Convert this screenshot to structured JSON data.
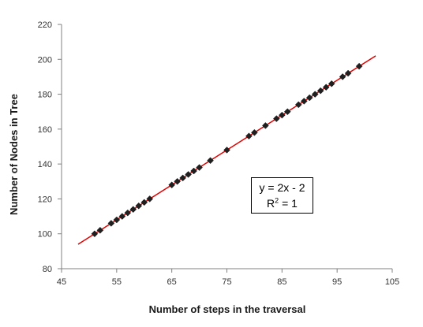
{
  "chart_data": {
    "type": "scatter",
    "xlabel": "Number of steps in the traversal",
    "ylabel": "Number of Nodes in Tree",
    "xlim": [
      45,
      105
    ],
    "ylim": [
      80,
      220
    ],
    "x_ticks": [
      "45",
      "55",
      "65",
      "75",
      "85",
      "95",
      "105"
    ],
    "y_ticks": [
      "80",
      "100",
      "120",
      "140",
      "160",
      "180",
      "200",
      "220"
    ],
    "grid": false,
    "series": [
      {
        "marker": "diamond",
        "color": "#1f1f1f",
        "points": [
          [
            51,
            100
          ],
          [
            52,
            102
          ],
          [
            54,
            106
          ],
          [
            55,
            108
          ],
          [
            56,
            110
          ],
          [
            57,
            112
          ],
          [
            58,
            114
          ],
          [
            59,
            116
          ],
          [
            60,
            118
          ],
          [
            61,
            120
          ],
          [
            65,
            128
          ],
          [
            66,
            130
          ],
          [
            67,
            132
          ],
          [
            68,
            134
          ],
          [
            69,
            136
          ],
          [
            70,
            138
          ],
          [
            72,
            142
          ],
          [
            75,
            148
          ],
          [
            79,
            156
          ],
          [
            80,
            158
          ],
          [
            82,
            162
          ],
          [
            84,
            166
          ],
          [
            85,
            168
          ],
          [
            86,
            170
          ],
          [
            88,
            174
          ],
          [
            89,
            176
          ],
          [
            90,
            178
          ],
          [
            91,
            180
          ],
          [
            92,
            182
          ],
          [
            93,
            184
          ],
          [
            94,
            186
          ],
          [
            96,
            190
          ],
          [
            97,
            192
          ],
          [
            99,
            196
          ]
        ]
      }
    ],
    "trendline": {
      "color": "#e00000",
      "slope": 2,
      "intercept": -2,
      "x_range": [
        48,
        102
      ]
    },
    "annotation": {
      "equation": "y = 2x - 2",
      "r2_prefix": "R",
      "r2_exp": "2",
      "r2_suffix": " = 1"
    }
  }
}
